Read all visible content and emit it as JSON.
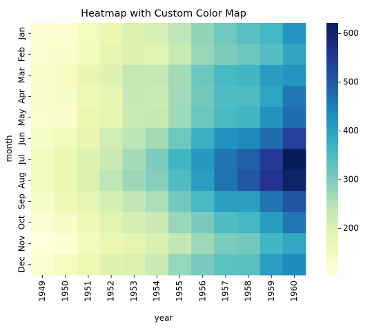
{
  "chart_data": {
    "type": "heatmap",
    "title": "Heatmap with Custom Color Map",
    "xlabel": "year",
    "ylabel": "month",
    "x_categories": [
      "1949",
      "1950",
      "1951",
      "1952",
      "1953",
      "1954",
      "1955",
      "1956",
      "1957",
      "1958",
      "1959",
      "1960"
    ],
    "y_categories": [
      "Jan",
      "Feb",
      "Mar",
      "Apr",
      "May",
      "Jun",
      "Jul",
      "Aug",
      "Sep",
      "Oct",
      "Nov",
      "Dec"
    ],
    "values": [
      [
        112,
        115,
        145,
        171,
        196,
        204,
        242,
        284,
        315,
        340,
        360,
        417
      ],
      [
        118,
        126,
        150,
        180,
        196,
        188,
        233,
        277,
        301,
        318,
        342,
        391
      ],
      [
        132,
        141,
        178,
        193,
        236,
        235,
        267,
        317,
        356,
        362,
        406,
        419
      ],
      [
        129,
        135,
        163,
        181,
        235,
        227,
        269,
        313,
        348,
        348,
        396,
        461
      ],
      [
        121,
        125,
        172,
        183,
        229,
        234,
        270,
        318,
        355,
        363,
        420,
        472
      ],
      [
        135,
        149,
        178,
        218,
        243,
        264,
        315,
        374,
        422,
        435,
        472,
        535
      ],
      [
        148,
        170,
        199,
        230,
        264,
        302,
        364,
        413,
        465,
        491,
        548,
        622
      ],
      [
        148,
        170,
        199,
        242,
        272,
        293,
        347,
        405,
        467,
        505,
        559,
        606
      ],
      [
        136,
        158,
        184,
        209,
        237,
        259,
        312,
        355,
        404,
        404,
        463,
        508
      ],
      [
        119,
        133,
        162,
        191,
        211,
        229,
        274,
        306,
        347,
        359,
        407,
        461
      ],
      [
        104,
        114,
        146,
        172,
        180,
        203,
        237,
        271,
        305,
        310,
        362,
        390
      ],
      [
        118,
        140,
        166,
        194,
        201,
        229,
        278,
        306,
        336,
        337,
        405,
        432
      ]
    ],
    "colormap": "YlGnBu",
    "colorbar": {
      "range": [
        104,
        622
      ],
      "ticks": [
        200,
        300,
        400,
        500,
        600
      ]
    },
    "grid": false,
    "legend": "colorbar-right"
  }
}
